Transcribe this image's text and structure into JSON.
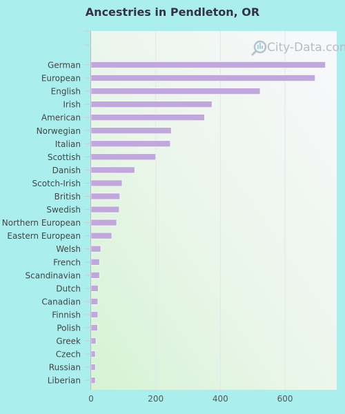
{
  "page": {
    "background": "#aaeeee"
  },
  "watermark": {
    "text": "City-Data.com",
    "icon": "magnifier-icon"
  },
  "chart_data": {
    "type": "bar",
    "orientation": "horizontal",
    "title": "Ancestries in Pendleton, OR",
    "xlabel": "",
    "ylabel": "",
    "categories": [
      "German",
      "European",
      "English",
      "Irish",
      "American",
      "Norwegian",
      "Italian",
      "Scottish",
      "Danish",
      "Scotch-Irish",
      "British",
      "Swedish",
      "Northern European",
      "Eastern European",
      "Welsh",
      "French",
      "Scandinavian",
      "Dutch",
      "Canadian",
      "Finnish",
      "Polish",
      "Greek",
      "Czech",
      "Russian",
      "Liberian"
    ],
    "values": [
      725,
      693,
      523,
      374,
      351,
      248,
      245,
      200,
      135,
      96,
      89,
      87,
      79,
      64,
      30,
      26,
      26,
      22,
      21,
      21,
      20,
      15,
      13,
      13,
      13
    ],
    "xlim": [
      0,
      760
    ],
    "xticks": [
      0,
      200,
      400,
      600
    ],
    "grid": true,
    "legend": "none",
    "colors": {
      "bar": "#c0a8dc",
      "bar_stroke": "#ffffff",
      "plot_bg_top": "#f7f7fc",
      "plot_bg_bottom": "#d6f4d6"
    }
  }
}
